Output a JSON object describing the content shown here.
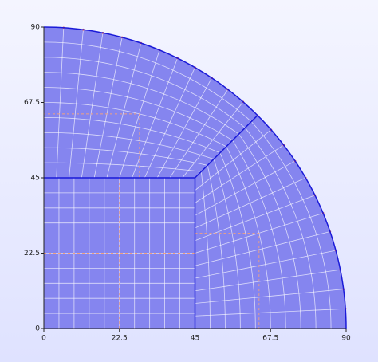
{
  "chart_data": {
    "type": "mesh",
    "xlim": [
      0,
      90
    ],
    "ylim": [
      0,
      90
    ],
    "xticks": [
      0,
      22.5,
      45,
      67.5,
      90
    ],
    "yticks": [
      0,
      22.5,
      45,
      67.5,
      90
    ],
    "radius": 90,
    "square": 45,
    "fill": "#8585ef",
    "edge_color": "#1a1ad8"
  }
}
